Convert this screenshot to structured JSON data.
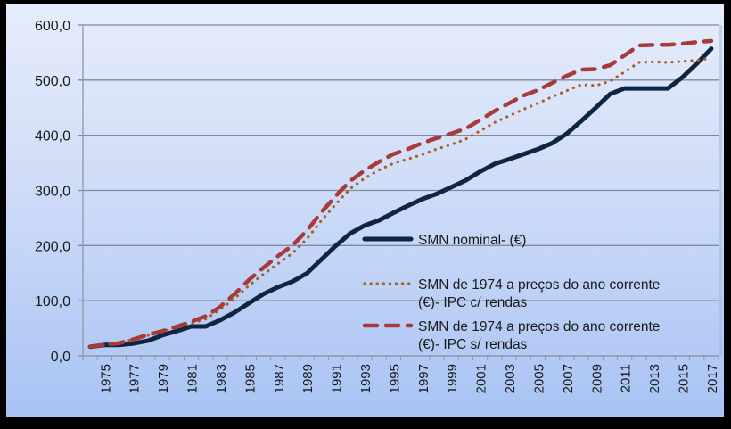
{
  "chart_data": {
    "type": "line",
    "title": "",
    "xlabel": "",
    "ylabel": "",
    "ylim": [
      0,
      600
    ],
    "yticks": [
      0,
      100,
      200,
      300,
      400,
      500,
      600
    ],
    "ytick_labels": [
      "0,0",
      "100,0",
      "200,0",
      "300,0",
      "400,0",
      "500,0",
      "600,0"
    ],
    "grid": true,
    "legend_position": "center-right inside plot",
    "x": [
      1974,
      1975,
      1976,
      1977,
      1978,
      1979,
      1980,
      1981,
      1982,
      1983,
      1984,
      1985,
      1986,
      1987,
      1988,
      1989,
      1990,
      1991,
      1992,
      1993,
      1994,
      1995,
      1996,
      1997,
      1998,
      1999,
      2000,
      2001,
      2002,
      2003,
      2004,
      2005,
      2006,
      2007,
      2008,
      2009,
      2010,
      2011,
      2012,
      2013,
      2014,
      2015,
      2016,
      2017
    ],
    "xtick_labels": [
      "1975",
      "1977",
      "1979",
      "1981",
      "1983",
      "1985",
      "1987",
      "1989",
      "1991",
      "1993",
      "1995",
      "1997",
      "1999",
      "2001",
      "2003",
      "2005",
      "2007",
      "2009",
      "2011",
      "2013",
      "2015",
      "2017"
    ],
    "series": [
      {
        "name": "SMN nominal- (€)",
        "style": "solid",
        "color": "#0f2542",
        "values": [
          16.5,
          19.7,
          19.7,
          22.4,
          27.4,
          37.4,
          44.9,
          53.4,
          53.4,
          64.8,
          78.8,
          95.8,
          112.2,
          124.7,
          134.7,
          149.6,
          174.6,
          199.5,
          221.9,
          236.4,
          245.9,
          259.4,
          272.4,
          284.3,
          293.8,
          305.8,
          318.2,
          334.2,
          348.0,
          356.6,
          365.6,
          374.7,
          385.9,
          403,
          426,
          450,
          475,
          485,
          485,
          485,
          485,
          505,
          530,
          557
        ]
      },
      {
        "name": "SMN de 1974 a preços do ano corrente (€)-  IPC c/ rendas",
        "style": "dotted",
        "color": "#a65f24",
        "values": [
          16.5,
          20,
          23,
          30,
          37,
          44,
          51,
          59,
          67,
          84,
          104,
          128,
          148,
          167,
          186,
          212,
          245,
          275,
          303,
          322,
          337,
          349,
          357,
          365,
          375,
          383,
          393,
          408,
          423,
          435,
          447,
          458,
          470,
          481,
          492,
          490,
          498,
          515,
          532,
          533,
          532,
          534,
          536,
          540
        ]
      },
      {
        "name": "SMN de 1974 a preços do ano corrente (€)-  IPC s/ rendas",
        "style": "dashed",
        "color": "#a83a3a",
        "values": [
          16.5,
          20,
          23,
          30,
          38,
          45,
          53,
          62,
          72,
          89,
          112,
          138,
          160,
          181,
          200,
          227,
          260,
          290,
          317,
          336,
          352,
          366,
          375,
          386,
          395,
          403,
          412,
          428,
          444,
          458,
          472,
          482,
          495,
          508,
          519,
          520,
          527,
          545,
          563,
          564,
          564,
          566,
          569,
          571
        ]
      }
    ],
    "legend": [
      {
        "line1": "SMN nominal- (€)",
        "line2": ""
      },
      {
        "line1": "SMN de 1974 a preços do ano corrente",
        "line2": "(€)-  IPC c/ rendas"
      },
      {
        "line1": "SMN de 1974 a preços do ano corrente",
        "line2": "(€)-  IPC s/ rendas"
      }
    ]
  }
}
